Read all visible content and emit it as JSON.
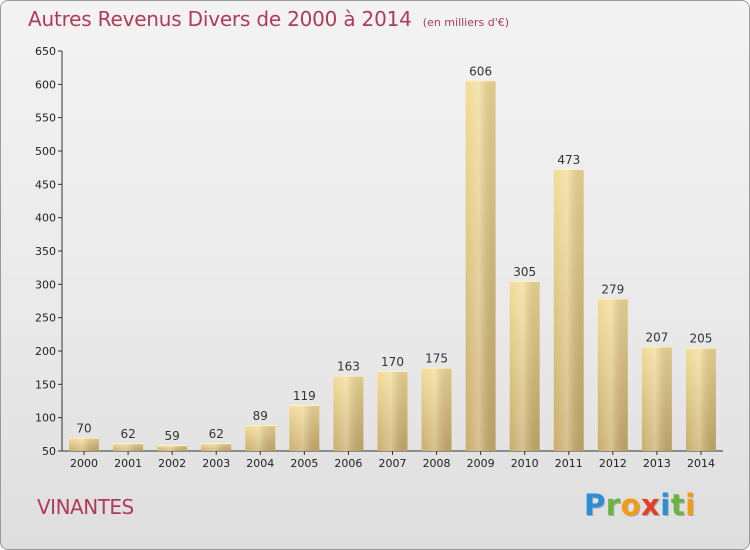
{
  "title": {
    "main": "Autres Revenus Divers de 2000 à 2014",
    "sub": "(en milliers d'€)"
  },
  "place": "VINANTES",
  "logo": {
    "letters": [
      "P",
      "r",
      "o",
      "x",
      "i",
      "t",
      "i"
    ],
    "colors": [
      "#2a8fd8",
      "#6cb33f",
      "#f39c12",
      "#e0412b",
      "#2a8fd8",
      "#6cb33f",
      "#f39c12"
    ]
  },
  "chart_data": {
    "type": "bar",
    "title": "Autres Revenus Divers de 2000 à 2014",
    "subtitle": "(en milliers d'€)",
    "xlabel": "",
    "ylabel": "",
    "categories": [
      "2000",
      "2001",
      "2002",
      "2003",
      "2004",
      "2005",
      "2006",
      "2007",
      "2008",
      "2009",
      "2010",
      "2011",
      "2012",
      "2013",
      "2014"
    ],
    "values": [
      70,
      62,
      59,
      62,
      89,
      119,
      163,
      170,
      175,
      606,
      305,
      473,
      279,
      207,
      205
    ],
    "ylim": [
      50,
      650
    ],
    "yticks": [
      50,
      100,
      150,
      200,
      250,
      300,
      350,
      400,
      450,
      500,
      550,
      600,
      650
    ],
    "grid": false,
    "bar_color": "#e8cc85"
  }
}
